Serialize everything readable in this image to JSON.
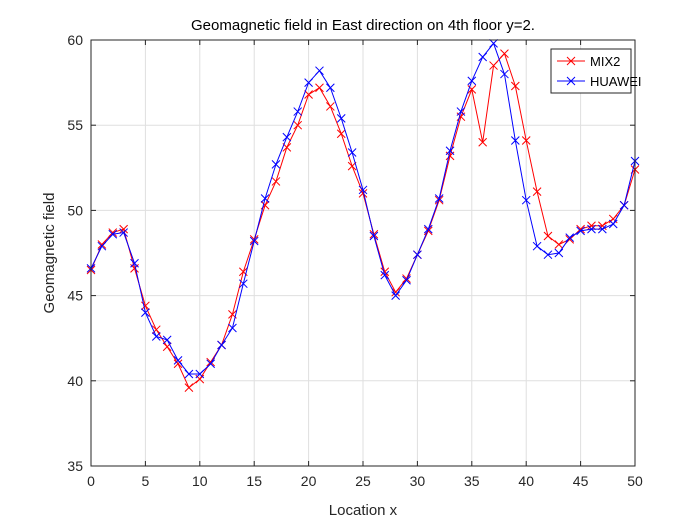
{
  "chart_data": {
    "type": "line",
    "title": "Geomagnetic field in East direction on 4th floor y=2.",
    "xlabel": "Location x",
    "ylabel": "Geomagnetic field",
    "xlim": [
      0,
      50
    ],
    "ylim": [
      35,
      60
    ],
    "xticks": [
      0,
      5,
      10,
      15,
      20,
      25,
      30,
      35,
      40,
      45,
      50
    ],
    "yticks": [
      35,
      40,
      45,
      50,
      55,
      60
    ],
    "grid": true,
    "legend_position": "top-right",
    "x": [
      0,
      1,
      2,
      3,
      4,
      5,
      6,
      7,
      8,
      9,
      10,
      11,
      12,
      13,
      14,
      15,
      16,
      17,
      18,
      19,
      20,
      21,
      22,
      23,
      24,
      25,
      26,
      27,
      28,
      29,
      30,
      31,
      32,
      33,
      34,
      35,
      36,
      37,
      38,
      39,
      40,
      41,
      42,
      43,
      44,
      45,
      46,
      47,
      48,
      49,
      50
    ],
    "series": [
      {
        "name": "MIX2",
        "color": "#ff0000",
        "marker": "x",
        "values": [
          46.5,
          48.0,
          48.7,
          48.9,
          46.6,
          44.4,
          43.0,
          42.0,
          41.0,
          39.6,
          40.1,
          41.1,
          42.1,
          43.9,
          46.4,
          48.3,
          50.3,
          51.7,
          53.7,
          55.0,
          56.8,
          57.2,
          56.1,
          54.5,
          52.6,
          51.0,
          48.6,
          46.4,
          45.2,
          46.0,
          47.4,
          48.8,
          50.6,
          53.2,
          55.5,
          57.1,
          54.0,
          58.5,
          59.2,
          57.3,
          54.1,
          51.1,
          48.5,
          48.0,
          48.3,
          48.9,
          49.1,
          49.1,
          49.5,
          50.3,
          52.4
        ]
      },
      {
        "name": "HUAWEI",
        "color": "#0000ff",
        "marker": "x",
        "values": [
          46.6,
          47.9,
          48.6,
          48.7,
          46.9,
          44.0,
          42.6,
          42.4,
          41.2,
          40.4,
          40.4,
          41.0,
          42.1,
          43.1,
          45.7,
          48.2,
          50.7,
          52.7,
          54.3,
          55.8,
          57.5,
          58.2,
          57.2,
          55.4,
          53.4,
          51.2,
          48.5,
          46.2,
          45.0,
          45.9,
          47.4,
          48.9,
          50.7,
          53.5,
          55.8,
          57.6,
          59.0,
          59.8,
          58.0,
          54.1,
          50.6,
          47.9,
          47.4,
          47.5,
          48.4,
          48.8,
          48.9,
          48.9,
          49.2,
          50.3,
          52.9
        ]
      }
    ]
  }
}
